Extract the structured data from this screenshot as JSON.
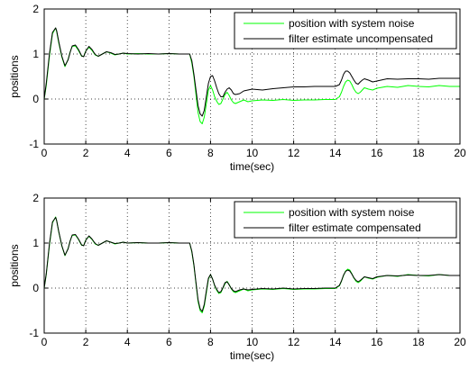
{
  "chart_data": [
    {
      "type": "line",
      "xlabel": "time(sec)",
      "ylabel": "positions",
      "xlim": [
        0,
        20
      ],
      "ylim": [
        -1,
        2
      ],
      "xticks": [
        "0",
        "2",
        "4",
        "6",
        "8",
        "10",
        "12",
        "14",
        "16",
        "18",
        "20"
      ],
      "yticks": [
        "-1",
        "0",
        "1",
        "2"
      ],
      "grid": true,
      "legend_position": "top-right",
      "series": [
        {
          "name": "position with system noise",
          "color": "#00ff00",
          "x": [
            0,
            0.1,
            0.25,
            0.4,
            0.55,
            0.6,
            0.7,
            0.85,
            1.0,
            1.15,
            1.25,
            1.35,
            1.5,
            1.65,
            1.8,
            1.9,
            2.0,
            2.15,
            2.3,
            2.45,
            2.6,
            2.8,
            3.0,
            3.2,
            3.4,
            3.6,
            3.8,
            4.0,
            4.5,
            5.0,
            5.5,
            6.0,
            6.5,
            7.0,
            7.1,
            7.2,
            7.3,
            7.4,
            7.5,
            7.6,
            7.7,
            7.8,
            7.9,
            8.0,
            8.1,
            8.2,
            8.3,
            8.4,
            8.5,
            8.6,
            8.7,
            8.8,
            8.9,
            9.0,
            9.1,
            9.2,
            9.4,
            9.6,
            9.8,
            10.0,
            10.5,
            11.0,
            11.5,
            12.0,
            12.5,
            13.0,
            13.5,
            14.0,
            14.2,
            14.3,
            14.4,
            14.5,
            14.6,
            14.7,
            14.8,
            14.9,
            15.0,
            15.1,
            15.2,
            15.3,
            15.4,
            15.6,
            15.8,
            16.0,
            16.5,
            17.0,
            17.5,
            18.0,
            18.5,
            19.0,
            19.5,
            20.0
          ],
          "values": [
            0,
            0.3,
            0.95,
            1.45,
            1.58,
            1.5,
            1.25,
            0.93,
            0.72,
            0.88,
            1.05,
            1.17,
            1.18,
            1.08,
            0.95,
            0.95,
            1.07,
            1.15,
            1.08,
            0.98,
            0.95,
            1.0,
            1.05,
            1.02,
            0.98,
            1.0,
            1.02,
            1.0,
            1.01,
            1.0,
            1.0,
            1.01,
            1.0,
            1.0,
            0.8,
            0.5,
            0.1,
            -0.3,
            -0.5,
            -0.55,
            -0.4,
            -0.1,
            0.2,
            0.3,
            0.2,
            0.05,
            -0.05,
            -0.12,
            -0.1,
            0.0,
            0.1,
            0.15,
            0.08,
            -0.02,
            -0.08,
            -0.1,
            -0.06,
            -0.02,
            -0.06,
            -0.04,
            -0.02,
            -0.03,
            -0.01,
            -0.03,
            -0.02,
            -0.02,
            -0.01,
            -0.01,
            0.05,
            0.15,
            0.28,
            0.38,
            0.42,
            0.4,
            0.32,
            0.22,
            0.15,
            0.12,
            0.15,
            0.2,
            0.25,
            0.22,
            0.2,
            0.24,
            0.28,
            0.26,
            0.3,
            0.28,
            0.27,
            0.3,
            0.28,
            0.28
          ]
        },
        {
          "name": "filter estimate uncompensated",
          "color": "#000000",
          "x": [
            0,
            0.1,
            0.25,
            0.4,
            0.55,
            0.6,
            0.7,
            0.85,
            1.0,
            1.15,
            1.25,
            1.35,
            1.5,
            1.65,
            1.8,
            1.9,
            2.0,
            2.15,
            2.3,
            2.45,
            2.6,
            2.8,
            3.0,
            3.2,
            3.4,
            3.6,
            3.8,
            4.0,
            4.5,
            5.0,
            5.5,
            6.0,
            6.5,
            7.0,
            7.1,
            7.2,
            7.3,
            7.4,
            7.5,
            7.6,
            7.7,
            7.8,
            7.9,
            8.0,
            8.1,
            8.2,
            8.3,
            8.4,
            8.5,
            8.6,
            8.7,
            8.8,
            8.9,
            9.0,
            9.1,
            9.2,
            9.4,
            9.6,
            9.8,
            10.0,
            10.5,
            11.0,
            11.5,
            12.0,
            12.5,
            13.0,
            13.5,
            14.0,
            14.2,
            14.3,
            14.4,
            14.5,
            14.6,
            14.7,
            14.8,
            14.9,
            15.0,
            15.1,
            15.2,
            15.3,
            15.4,
            15.6,
            15.8,
            16.0,
            16.5,
            17.0,
            17.5,
            18.0,
            18.5,
            19.0,
            19.5,
            20.0
          ],
          "values": [
            0,
            0.35,
            1.0,
            1.48,
            1.58,
            1.52,
            1.28,
            0.95,
            0.74,
            0.87,
            1.04,
            1.18,
            1.2,
            1.1,
            0.96,
            0.94,
            1.06,
            1.17,
            1.1,
            0.99,
            0.95,
            1.0,
            1.05,
            1.03,
            0.99,
            1.0,
            1.02,
            1.01,
            1.0,
            1.01,
            1.0,
            1.01,
            1.0,
            1.0,
            0.85,
            0.55,
            0.2,
            -0.15,
            -0.33,
            -0.38,
            -0.25,
            0.05,
            0.35,
            0.5,
            0.52,
            0.4,
            0.25,
            0.12,
            0.05,
            0.05,
            0.15,
            0.22,
            0.25,
            0.2,
            0.12,
            0.1,
            0.12,
            0.18,
            0.2,
            0.22,
            0.2,
            0.23,
            0.25,
            0.27,
            0.27,
            0.28,
            0.28,
            0.28,
            0.32,
            0.42,
            0.55,
            0.62,
            0.62,
            0.58,
            0.5,
            0.42,
            0.35,
            0.33,
            0.38,
            0.42,
            0.45,
            0.42,
            0.38,
            0.4,
            0.45,
            0.44,
            0.45,
            0.45,
            0.44,
            0.46,
            0.46,
            0.46
          ]
        }
      ]
    },
    {
      "type": "line",
      "xlabel": "time(sec)",
      "ylabel": "positions",
      "xlim": [
        0,
        20
      ],
      "ylim": [
        -1,
        2
      ],
      "xticks": [
        "0",
        "2",
        "4",
        "6",
        "8",
        "10",
        "12",
        "14",
        "16",
        "18",
        "20"
      ],
      "yticks": [
        "-1",
        "0",
        "1",
        "2"
      ],
      "grid": true,
      "legend_position": "top-right",
      "series": [
        {
          "name": "position with system noise",
          "color": "#00ff00",
          "x": [
            0,
            0.1,
            0.25,
            0.4,
            0.55,
            0.6,
            0.7,
            0.85,
            1.0,
            1.15,
            1.25,
            1.35,
            1.5,
            1.65,
            1.8,
            1.9,
            2.0,
            2.15,
            2.3,
            2.45,
            2.6,
            2.8,
            3.0,
            3.2,
            3.4,
            3.6,
            3.8,
            4.0,
            4.5,
            5.0,
            5.5,
            6.0,
            6.5,
            7.0,
            7.1,
            7.2,
            7.3,
            7.4,
            7.5,
            7.6,
            7.7,
            7.8,
            7.9,
            8.0,
            8.1,
            8.2,
            8.3,
            8.4,
            8.5,
            8.6,
            8.7,
            8.8,
            8.9,
            9.0,
            9.1,
            9.2,
            9.4,
            9.6,
            9.8,
            10.0,
            10.5,
            11.0,
            11.5,
            12.0,
            12.5,
            13.0,
            13.5,
            14.0,
            14.2,
            14.3,
            14.4,
            14.5,
            14.6,
            14.7,
            14.8,
            14.9,
            15.0,
            15.1,
            15.2,
            15.3,
            15.4,
            15.6,
            15.8,
            16.0,
            16.5,
            17.0,
            17.5,
            18.0,
            18.5,
            19.0,
            19.5,
            20.0
          ],
          "values": [
            0,
            0.3,
            0.95,
            1.45,
            1.58,
            1.5,
            1.25,
            0.93,
            0.72,
            0.88,
            1.05,
            1.17,
            1.18,
            1.08,
            0.95,
            0.95,
            1.07,
            1.15,
            1.08,
            0.98,
            0.95,
            1.0,
            1.05,
            1.02,
            0.98,
            1.0,
            1.02,
            1.0,
            1.01,
            1.0,
            1.0,
            1.01,
            1.0,
            1.0,
            0.8,
            0.5,
            0.1,
            -0.3,
            -0.5,
            -0.55,
            -0.4,
            -0.1,
            0.2,
            0.3,
            0.2,
            0.05,
            -0.05,
            -0.12,
            -0.1,
            0.0,
            0.1,
            0.15,
            0.08,
            -0.02,
            -0.08,
            -0.1,
            -0.06,
            -0.02,
            -0.06,
            -0.04,
            -0.02,
            -0.03,
            -0.01,
            -0.03,
            -0.02,
            -0.02,
            -0.01,
            -0.01,
            0.05,
            0.15,
            0.28,
            0.38,
            0.42,
            0.4,
            0.32,
            0.22,
            0.15,
            0.12,
            0.15,
            0.2,
            0.25,
            0.22,
            0.2,
            0.24,
            0.28,
            0.26,
            0.3,
            0.28,
            0.27,
            0.3,
            0.28,
            0.28
          ]
        },
        {
          "name": "filter estimate compensated",
          "color": "#000000",
          "x": [
            0,
            0.1,
            0.25,
            0.4,
            0.55,
            0.6,
            0.7,
            0.85,
            1.0,
            1.15,
            1.25,
            1.35,
            1.5,
            1.65,
            1.8,
            1.9,
            2.0,
            2.15,
            2.3,
            2.45,
            2.6,
            2.8,
            3.0,
            3.2,
            3.4,
            3.6,
            3.8,
            4.0,
            4.5,
            5.0,
            5.5,
            6.0,
            6.5,
            7.0,
            7.1,
            7.2,
            7.3,
            7.4,
            7.5,
            7.6,
            7.7,
            7.8,
            7.9,
            8.0,
            8.1,
            8.2,
            8.3,
            8.4,
            8.5,
            8.6,
            8.7,
            8.8,
            8.9,
            9.0,
            9.1,
            9.2,
            9.4,
            9.6,
            9.8,
            10.0,
            10.5,
            11.0,
            11.5,
            12.0,
            12.5,
            13.0,
            13.5,
            14.0,
            14.2,
            14.3,
            14.4,
            14.5,
            14.6,
            14.7,
            14.8,
            14.9,
            15.0,
            15.1,
            15.2,
            15.3,
            15.4,
            15.6,
            15.8,
            16.0,
            16.5,
            17.0,
            17.5,
            18.0,
            18.5,
            19.0,
            19.5,
            20.0
          ],
          "values": [
            0,
            0.32,
            0.98,
            1.47,
            1.57,
            1.5,
            1.26,
            0.94,
            0.73,
            0.87,
            1.05,
            1.18,
            1.19,
            1.09,
            0.96,
            0.94,
            1.06,
            1.16,
            1.09,
            0.99,
            0.95,
            1.0,
            1.05,
            1.02,
            0.99,
            1.0,
            1.02,
            1.0,
            1.01,
            1.0,
            1.0,
            1.01,
            1.0,
            1.0,
            0.82,
            0.52,
            0.12,
            -0.26,
            -0.46,
            -0.52,
            -0.36,
            -0.06,
            0.22,
            0.3,
            0.2,
            0.06,
            -0.03,
            -0.1,
            -0.08,
            0.01,
            0.12,
            0.14,
            0.07,
            -0.01,
            -0.06,
            -0.08,
            -0.04,
            -0.02,
            -0.04,
            -0.03,
            -0.01,
            -0.02,
            0.0,
            -0.02,
            -0.01,
            -0.01,
            0.0,
            0.0,
            0.06,
            0.16,
            0.29,
            0.37,
            0.4,
            0.38,
            0.31,
            0.23,
            0.17,
            0.14,
            0.17,
            0.21,
            0.25,
            0.23,
            0.21,
            0.25,
            0.28,
            0.27,
            0.29,
            0.28,
            0.28,
            0.3,
            0.28,
            0.28
          ]
        }
      ]
    }
  ]
}
